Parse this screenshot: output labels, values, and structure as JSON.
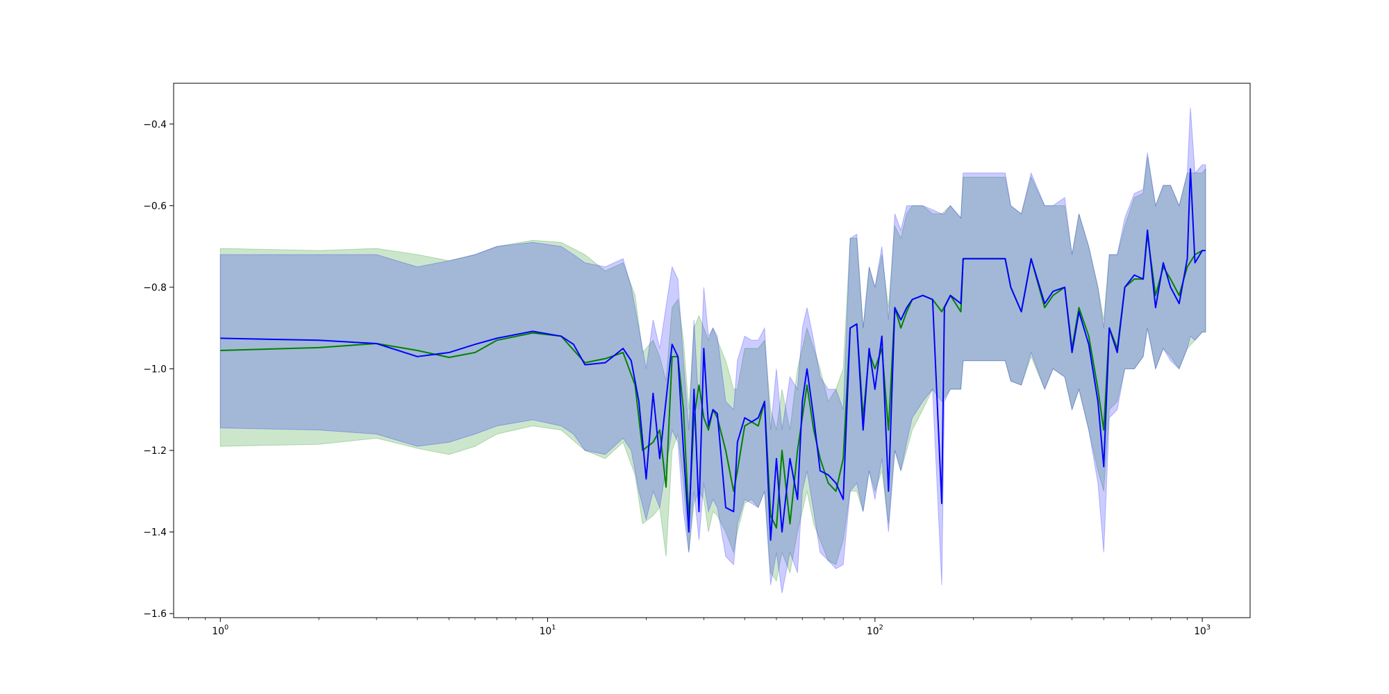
{
  "chart_data": {
    "type": "line",
    "title": "",
    "xlabel": "",
    "ylabel": "",
    "xscale": "log",
    "xlim": [
      0.72,
      1400
    ],
    "ylim": [
      -1.61,
      -0.3
    ],
    "grid": false,
    "x_ticks": [
      {
        "value": 1,
        "base": "10",
        "exp": "0"
      },
      {
        "value": 10,
        "base": "10",
        "exp": "1"
      },
      {
        "value": 100,
        "base": "10",
        "exp": "2"
      },
      {
        "value": 1000,
        "base": "10",
        "exp": "3"
      }
    ],
    "y_ticks": [
      {
        "value": -0.4,
        "label": "−0.4"
      },
      {
        "value": -0.6,
        "label": "−0.6"
      },
      {
        "value": -0.8,
        "label": "−0.8"
      },
      {
        "value": -1.0,
        "label": "−1.0"
      },
      {
        "value": -1.2,
        "label": "−1.2"
      },
      {
        "value": -1.4,
        "label": "−1.4"
      },
      {
        "value": -1.6,
        "label": "−1.6"
      }
    ],
    "series": [
      {
        "color": "#008000",
        "band_color": "#008000",
        "band_opacity": 0.2,
        "points": [
          [
            1,
            -0.955,
            -0.705,
            -1.19
          ],
          [
            2,
            -0.948,
            -0.71,
            -1.185
          ],
          [
            3,
            -0.938,
            -0.705,
            -1.17
          ],
          [
            4,
            -0.955,
            -0.72,
            -1.195
          ],
          [
            5,
            -0.972,
            -0.735,
            -1.21
          ],
          [
            6,
            -0.96,
            -0.72,
            -1.19
          ],
          [
            7,
            -0.93,
            -0.7,
            -1.16
          ],
          [
            9,
            -0.912,
            -0.685,
            -1.14
          ],
          [
            11,
            -0.92,
            -0.69,
            -1.15
          ],
          [
            13,
            -0.985,
            -0.72,
            -1.2
          ],
          [
            15,
            -0.975,
            -0.76,
            -1.22
          ],
          [
            17,
            -0.96,
            -0.74,
            -1.18
          ],
          [
            18.5,
            -1.04,
            -0.82,
            -1.26
          ],
          [
            19.5,
            -1.2,
            -0.96,
            -1.38
          ],
          [
            21,
            -1.18,
            -0.93,
            -1.36
          ],
          [
            22,
            -1.15,
            -0.97,
            -1.34
          ],
          [
            23,
            -1.29,
            -1.03,
            -1.46
          ],
          [
            24,
            -0.97,
            -0.85,
            -1.2
          ],
          [
            25,
            -0.97,
            -0.83,
            -1.16
          ],
          [
            26,
            -1.1,
            -0.93,
            -1.28
          ],
          [
            27,
            -1.37,
            -1.1,
            -1.45
          ],
          [
            28,
            -1.12,
            -0.9,
            -1.33
          ],
          [
            29,
            -1.04,
            -0.87,
            -1.3
          ],
          [
            30,
            -1.12,
            -0.9,
            -1.32
          ],
          [
            31,
            -1.15,
            -0.93,
            -1.4
          ],
          [
            32,
            -1.1,
            -0.9,
            -1.35
          ],
          [
            33,
            -1.12,
            -0.93,
            -1.36
          ],
          [
            35,
            -1.2,
            -0.98,
            -1.4
          ],
          [
            37,
            -1.3,
            -1.05,
            -1.45
          ],
          [
            38,
            -1.25,
            -1.05,
            -1.4
          ],
          [
            40,
            -1.14,
            -0.95,
            -1.33
          ],
          [
            42,
            -1.13,
            -0.95,
            -1.32
          ],
          [
            44,
            -1.14,
            -0.95,
            -1.34
          ],
          [
            46,
            -1.08,
            -0.93,
            -1.3
          ],
          [
            48,
            -1.36,
            -1.1,
            -1.5
          ],
          [
            50,
            -1.39,
            -1.15,
            -1.52
          ],
          [
            52,
            -1.2,
            -1.05,
            -1.45
          ],
          [
            55,
            -1.38,
            -1.15,
            -1.5
          ],
          [
            58,
            -1.2,
            -1.0,
            -1.4
          ],
          [
            62,
            -1.04,
            -0.9,
            -1.3
          ],
          [
            65,
            -1.15,
            -0.95,
            -1.38
          ],
          [
            68,
            -1.22,
            -1.0,
            -1.42
          ],
          [
            72,
            -1.28,
            -1.08,
            -1.47
          ],
          [
            76,
            -1.3,
            -1.05,
            -1.48
          ],
          [
            80,
            -1.22,
            -1.0,
            -1.42
          ],
          [
            84,
            -0.9,
            -0.68,
            -1.3
          ],
          [
            88,
            -0.89,
            -0.68,
            -1.3
          ],
          [
            92,
            -1.12,
            -0.9,
            -1.35
          ],
          [
            96,
            -0.96,
            -0.75,
            -1.25
          ],
          [
            100,
            -1.0,
            -0.8,
            -1.3
          ],
          [
            105,
            -0.95,
            -0.72,
            -1.25
          ],
          [
            110,
            -1.15,
            -0.85,
            -1.38
          ],
          [
            115,
            -0.85,
            -0.65,
            -1.2
          ],
          [
            120,
            -0.9,
            -0.68,
            -1.25
          ],
          [
            125,
            -0.86,
            -0.62,
            -1.2
          ],
          [
            130,
            -0.83,
            -0.6,
            -1.15
          ],
          [
            140,
            -0.82,
            -0.6,
            -1.1
          ],
          [
            150,
            -0.83,
            -0.62,
            -1.05
          ],
          [
            160,
            -0.86,
            -0.62,
            -1.08
          ],
          [
            170,
            -0.82,
            -0.6,
            -1.05
          ],
          [
            183,
            -0.86,
            -0.63,
            -1.05
          ],
          [
            186,
            -0.73,
            -0.53,
            -0.98
          ],
          [
            200,
            -0.73,
            -0.53,
            -0.98
          ],
          [
            230,
            -0.73,
            -0.53,
            -0.98
          ],
          [
            250,
            -0.73,
            -0.53,
            -0.98
          ],
          [
            260,
            -0.8,
            -0.6,
            -1.03
          ],
          [
            280,
            -0.86,
            -0.62,
            -1.04
          ],
          [
            300,
            -0.73,
            -0.53,
            -0.97
          ],
          [
            330,
            -0.85,
            -0.6,
            -1.05
          ],
          [
            350,
            -0.82,
            -0.6,
            -1.0
          ],
          [
            380,
            -0.8,
            -0.6,
            -1.02
          ],
          [
            400,
            -0.95,
            -0.72,
            -1.1
          ],
          [
            420,
            -0.85,
            -0.62,
            -1.05
          ],
          [
            450,
            -0.92,
            -0.7,
            -1.15
          ],
          [
            480,
            -1.05,
            -0.8,
            -1.25
          ],
          [
            500,
            -1.15,
            -0.88,
            -1.3
          ],
          [
            520,
            -0.9,
            -0.72,
            -1.1
          ],
          [
            550,
            -0.95,
            -0.72,
            -1.08
          ],
          [
            580,
            -0.8,
            -0.65,
            -1.0
          ],
          [
            620,
            -0.78,
            -0.58,
            -1.0
          ],
          [
            660,
            -0.78,
            -0.57,
            -0.97
          ],
          [
            680,
            -0.67,
            -0.48,
            -0.9
          ],
          [
            720,
            -0.82,
            -0.6,
            -1.0
          ],
          [
            760,
            -0.75,
            -0.55,
            -0.95
          ],
          [
            800,
            -0.78,
            -0.55,
            -0.97
          ],
          [
            850,
            -0.82,
            -0.6,
            -1.0
          ],
          [
            900,
            -0.75,
            -0.52,
            -0.95
          ],
          [
            950,
            -0.72,
            -0.52,
            -0.93
          ],
          [
            1000,
            -0.71,
            -0.52,
            -0.91
          ],
          [
            1024,
            -0.71,
            -0.51,
            -0.91
          ]
        ]
      },
      {
        "color": "#0000ff",
        "band_color": "#0000ff",
        "band_opacity": 0.2,
        "points": [
          [
            1,
            -0.925,
            -0.72,
            -1.145
          ],
          [
            2,
            -0.93,
            -0.72,
            -1.15
          ],
          [
            3,
            -0.938,
            -0.72,
            -1.16
          ],
          [
            4,
            -0.97,
            -0.75,
            -1.19
          ],
          [
            5,
            -0.96,
            -0.735,
            -1.18
          ],
          [
            6,
            -0.94,
            -0.72,
            -1.16
          ],
          [
            7,
            -0.925,
            -0.7,
            -1.14
          ],
          [
            9,
            -0.908,
            -0.69,
            -1.125
          ],
          [
            11,
            -0.92,
            -0.7,
            -1.14
          ],
          [
            12,
            -0.94,
            -0.72,
            -1.16
          ],
          [
            13,
            -0.99,
            -0.74,
            -1.2
          ],
          [
            15,
            -0.985,
            -0.75,
            -1.21
          ],
          [
            17,
            -0.95,
            -0.73,
            -1.17
          ],
          [
            18,
            -0.98,
            -0.8,
            -1.2
          ],
          [
            19,
            -1.08,
            -0.9,
            -1.3
          ],
          [
            20,
            -1.27,
            -1.0,
            -1.37
          ],
          [
            21,
            -1.06,
            -0.88,
            -1.3
          ],
          [
            22,
            -1.22,
            -0.95,
            -1.34
          ],
          [
            24,
            -0.94,
            -0.75,
            -1.15
          ],
          [
            25,
            -0.97,
            -0.78,
            -1.18
          ],
          [
            26,
            -1.2,
            -0.98,
            -1.35
          ],
          [
            27,
            -1.4,
            -1.15,
            -1.45
          ],
          [
            28,
            -1.05,
            -0.88,
            -1.3
          ],
          [
            29,
            -1.35,
            -1.1,
            -1.42
          ],
          [
            30,
            -0.95,
            -0.8,
            -1.28
          ],
          [
            31,
            -1.14,
            -0.92,
            -1.35
          ],
          [
            32,
            -1.1,
            -0.9,
            -1.32
          ],
          [
            33,
            -1.11,
            -0.92,
            -1.34
          ],
          [
            35,
            -1.34,
            -1.08,
            -1.46
          ],
          [
            37,
            -1.35,
            -1.1,
            -1.48
          ],
          [
            38,
            -1.18,
            -0.98,
            -1.38
          ],
          [
            40,
            -1.12,
            -0.92,
            -1.32
          ],
          [
            42,
            -1.13,
            -0.93,
            -1.33
          ],
          [
            44,
            -1.12,
            -0.93,
            -1.34
          ],
          [
            46,
            -1.08,
            -0.9,
            -1.3
          ],
          [
            48,
            -1.42,
            -1.15,
            -1.53
          ],
          [
            50,
            -1.22,
            -1.0,
            -1.45
          ],
          [
            52,
            -1.4,
            -1.15,
            -1.55
          ],
          [
            55,
            -1.22,
            -1.02,
            -1.45
          ],
          [
            58,
            -1.32,
            -1.05,
            -1.5
          ],
          [
            60,
            -1.08,
            -0.9,
            -1.3
          ],
          [
            62,
            -1.0,
            -0.85,
            -1.25
          ],
          [
            65,
            -1.12,
            -0.93,
            -1.35
          ],
          [
            68,
            -1.25,
            -1.02,
            -1.45
          ],
          [
            72,
            -1.26,
            -1.05,
            -1.47
          ],
          [
            76,
            -1.28,
            -1.05,
            -1.49
          ],
          [
            80,
            -1.32,
            -1.1,
            -1.48
          ],
          [
            84,
            -0.9,
            -0.68,
            -1.3
          ],
          [
            88,
            -0.89,
            -0.67,
            -1.28
          ],
          [
            92,
            -1.15,
            -0.9,
            -1.35
          ],
          [
            96,
            -0.95,
            -0.75,
            -1.25
          ],
          [
            100,
            -1.05,
            -0.8,
            -1.32
          ],
          [
            105,
            -0.92,
            -0.7,
            -1.22
          ],
          [
            110,
            -1.3,
            -0.88,
            -1.4
          ],
          [
            115,
            -0.85,
            -0.62,
            -1.2
          ],
          [
            120,
            -0.88,
            -0.66,
            -1.25
          ],
          [
            125,
            -0.85,
            -0.6,
            -1.18
          ],
          [
            130,
            -0.83,
            -0.6,
            -1.12
          ],
          [
            140,
            -0.82,
            -0.6,
            -1.08
          ],
          [
            150,
            -0.83,
            -0.61,
            -1.05
          ],
          [
            160,
            -1.33,
            -0.62,
            -1.53
          ],
          [
            163,
            -0.85,
            -0.62,
            -1.08
          ],
          [
            170,
            -0.82,
            -0.6,
            -1.05
          ],
          [
            183,
            -0.84,
            -0.63,
            -1.05
          ],
          [
            186,
            -0.73,
            -0.52,
            -0.98
          ],
          [
            200,
            -0.73,
            -0.52,
            -0.98
          ],
          [
            230,
            -0.73,
            -0.52,
            -0.98
          ],
          [
            250,
            -0.73,
            -0.52,
            -0.98
          ],
          [
            260,
            -0.8,
            -0.6,
            -1.03
          ],
          [
            280,
            -0.86,
            -0.62,
            -1.04
          ],
          [
            300,
            -0.73,
            -0.52,
            -0.96
          ],
          [
            330,
            -0.84,
            -0.6,
            -1.05
          ],
          [
            350,
            -0.81,
            -0.6,
            -1.0
          ],
          [
            380,
            -0.8,
            -0.58,
            -1.02
          ],
          [
            400,
            -0.96,
            -0.72,
            -1.1
          ],
          [
            420,
            -0.86,
            -0.62,
            -1.05
          ],
          [
            450,
            -0.94,
            -0.7,
            -1.15
          ],
          [
            480,
            -1.08,
            -0.8,
            -1.28
          ],
          [
            500,
            -1.24,
            -0.9,
            -1.45
          ],
          [
            520,
            -0.9,
            -0.72,
            -1.12
          ],
          [
            550,
            -0.96,
            -0.72,
            -1.1
          ],
          [
            580,
            -0.8,
            -0.63,
            -1.0
          ],
          [
            620,
            -0.77,
            -0.57,
            -1.0
          ],
          [
            660,
            -0.78,
            -0.56,
            -0.97
          ],
          [
            680,
            -0.66,
            -0.47,
            -0.9
          ],
          [
            720,
            -0.85,
            -0.6,
            -1.0
          ],
          [
            760,
            -0.74,
            -0.55,
            -0.95
          ],
          [
            800,
            -0.8,
            -0.55,
            -0.98
          ],
          [
            850,
            -0.84,
            -0.6,
            -1.0
          ],
          [
            900,
            -0.73,
            -0.52,
            -0.95
          ],
          [
            920,
            -0.51,
            -0.36,
            -0.92
          ],
          [
            950,
            -0.74,
            -0.52,
            -0.93
          ],
          [
            1000,
            -0.71,
            -0.5,
            -0.91
          ],
          [
            1024,
            -0.71,
            -0.5,
            -0.91
          ]
        ]
      }
    ]
  }
}
